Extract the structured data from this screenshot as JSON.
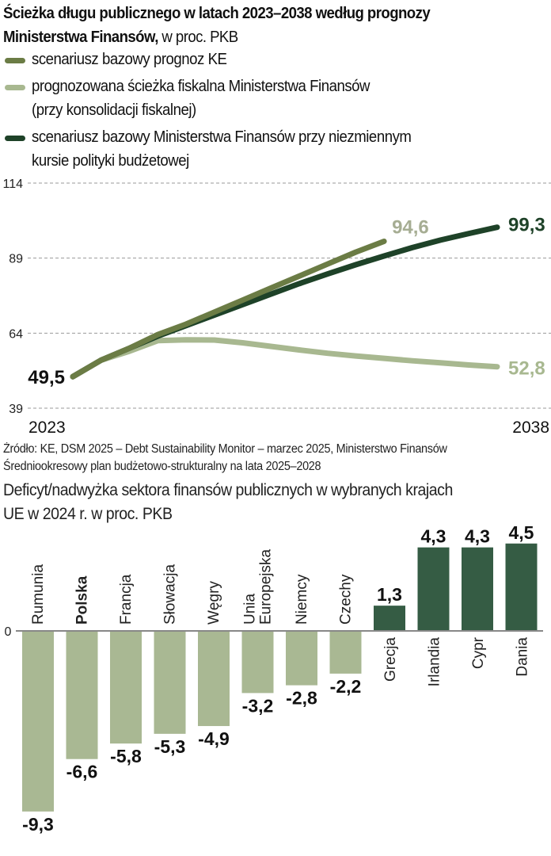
{
  "header": {
    "title_bold": "Ścieżka długu publicznego w latach 2023–2038 według prognozy Ministerstwa Finansów,",
    "title_light": " w proc. PKB"
  },
  "legend": [
    {
      "label": "scenariusz bazowy prognoz KE",
      "color": "#6b7c45"
    },
    {
      "label": "prognozowana ścieżka fiskalna Ministerstwa Finansów\n(przy konsolidacji fiskalnej)",
      "color": "#a8b890"
    },
    {
      "label": "scenariusz bazowy Ministerstwa Finansów przy niezmiennym\nkursie polityki budżetowej",
      "color": "#1e4228"
    }
  ],
  "source": "Źródło: KE, DSM 2025 – Debt Sustainability Monitor – marzec 2025, Ministerstwo Finansów Średniookresowy plan budżetowo-strukturalny na lata 2025–2028",
  "subtitle": "Deficyt/nadwyżka sektora finansów publicznych w wybranych krajach\nUE w 2024 r. w proc. PKB",
  "chart_data": [
    {
      "type": "line",
      "title": "Ścieżka długu publicznego w latach 2023–2038 według prognozy Ministerstwa Finansów, w proc. PKB",
      "xlabel": "",
      "ylabel": "",
      "x": [
        2023,
        2024,
        2025,
        2026,
        2027,
        2028,
        2029,
        2030,
        2031,
        2032,
        2033,
        2034,
        2035,
        2036,
        2037,
        2038
      ],
      "x_tick_labels": [
        "2023",
        "2038"
      ],
      "y_ticks": [
        39,
        64,
        89,
        114
      ],
      "ylim": [
        39,
        114
      ],
      "xlim": [
        2023,
        2038
      ],
      "grid": "horizontal-dashed",
      "series": [
        {
          "name": "scenariusz bazowy prognoz KE",
          "color": "#6b7c45",
          "x": [
            2023,
            2024,
            2025,
            2026,
            2027,
            2028,
            2029,
            2030,
            2031,
            2032,
            2033,
            2034
          ],
          "values": [
            49.5,
            55.0,
            59.0,
            63.5,
            67.0,
            71.0,
            75.0,
            79.0,
            83.0,
            87.0,
            91.0,
            94.6
          ],
          "end_label": "94,6",
          "end_label_color": "#a6ad93"
        },
        {
          "name": "prognozowana ścieżka fiskalna Ministerstwa Finansów (przy konsolidacji fiskalnej)",
          "color": "#a8b890",
          "x": [
            2023,
            2024,
            2025,
            2026,
            2027,
            2028,
            2029,
            2030,
            2031,
            2032,
            2033,
            2034,
            2035,
            2036,
            2037,
            2038
          ],
          "values": [
            49.5,
            55.0,
            58.0,
            61.5,
            61.8,
            61.7,
            60.8,
            59.6,
            58.4,
            57.3,
            56.4,
            55.6,
            54.8,
            54.1,
            53.4,
            52.8
          ],
          "end_label": "52,8",
          "end_label_color": "#a8b890"
        },
        {
          "name": "scenariusz bazowy Ministerstwa Finansów przy niezmiennym kursie polityki budżetowej",
          "color": "#1e4228",
          "x": [
            2023,
            2024,
            2025,
            2026,
            2027,
            2028,
            2029,
            2030,
            2031,
            2032,
            2033,
            2034,
            2035,
            2036,
            2037,
            2038
          ],
          "values": [
            49.5,
            55.0,
            59.0,
            63.0,
            66.5,
            70.0,
            73.5,
            77.0,
            80.5,
            83.7,
            86.8,
            89.7,
            92.5,
            95.0,
            97.2,
            99.3
          ],
          "end_label": "99,3",
          "end_label_color": "#1e4228"
        }
      ],
      "start_label": "49,5"
    },
    {
      "type": "bar",
      "title": "Deficyt/nadwyżka sektora finansów publicznych w wybranych krajach UE w 2024 r. w proc. PKB",
      "categories": [
        "Rumunia",
        "Polska",
        "Francja",
        "Słowacja",
        "Węgry",
        "Unia Europejska",
        "Niemcy",
        "Czechy",
        "Grecja",
        "Irlandia",
        "Cypr",
        "Dania"
      ],
      "category_lines": [
        [
          "Rumunia"
        ],
        [
          "Polska"
        ],
        [
          "Francja"
        ],
        [
          "Słowacja"
        ],
        [
          "Węgry"
        ],
        [
          "Unia",
          "Europejska"
        ],
        [
          "Niemcy"
        ],
        [
          "Czechy"
        ],
        [
          "Grecja"
        ],
        [
          "Irlandia"
        ],
        [
          "Cypr"
        ],
        [
          "Dania"
        ]
      ],
      "highlight_category": "Polska",
      "values": [
        -9.3,
        -6.6,
        -5.8,
        -5.3,
        -4.9,
        -3.2,
        -2.8,
        -2.2,
        1.3,
        4.3,
        4.3,
        4.5
      ],
      "value_labels": [
        "-9,3",
        "-6,6",
        "-5,8",
        "-5,3",
        "-4,9",
        "-3,2",
        "-2,8",
        "-2,2",
        "1,3",
        "4,3",
        "4,3",
        "4,5"
      ],
      "y_ticks": [
        0
      ],
      "y_tick_labels": [
        "0"
      ],
      "ylim": [
        -9.3,
        4.5
      ],
      "colors": {
        "negative": "#a9b893",
        "positive": "#355c44"
      },
      "xlabel": "",
      "ylabel": ""
    }
  ]
}
